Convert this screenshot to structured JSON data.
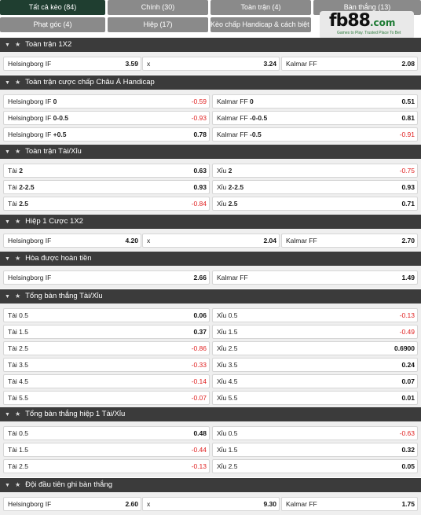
{
  "tabs": [
    {
      "label": "Tất cả kèo (84)",
      "active": true
    },
    {
      "label": "Chính (30)",
      "active": false
    },
    {
      "label": "Toàn trận (4)",
      "active": false
    },
    {
      "label": "Bàn thắng (13)",
      "active": false
    },
    {
      "label": "Phạt góc (4)",
      "active": false
    },
    {
      "label": "Hiệp (17)",
      "active": false
    },
    {
      "label": "Kèo chấp Handicap & cách biệt (3)",
      "active": false
    }
  ],
  "logo": {
    "brand": "fb88",
    "suffix": ".com",
    "tagline": "Games to Play. Trusted Place To Bet"
  },
  "sections": [
    {
      "title": "Toàn trận 1X2",
      "type": "three",
      "rows": [
        [
          {
            "label": "Helsingborg IF",
            "odds": "3.59"
          },
          {
            "label": "x",
            "odds": "3.24"
          },
          {
            "label": "Kalmar FF",
            "odds": "2.08"
          }
        ]
      ]
    },
    {
      "title": "Toàn trận cược chấp Châu Á Handicap",
      "type": "two",
      "rows": [
        [
          {
            "label": "Helsingborg IF",
            "line": "0",
            "odds": "-0.59"
          },
          {
            "label": "Kalmar FF",
            "line": "0",
            "odds": "0.51"
          }
        ],
        [
          {
            "label": "Helsingborg IF",
            "line": "0-0.5",
            "odds": "-0.93"
          },
          {
            "label": "Kalmar FF",
            "line": "-0-0.5",
            "odds": "0.81"
          }
        ],
        [
          {
            "label": "Helsingborg IF",
            "line": "+0.5",
            "odds": "0.78"
          },
          {
            "label": "Kalmar FF",
            "line": "-0.5",
            "odds": "-0.91"
          }
        ]
      ]
    },
    {
      "title": "Toàn trận Tài/Xỉu",
      "type": "two",
      "rows": [
        [
          {
            "label": "Tài",
            "line": "2",
            "odds": "0.63"
          },
          {
            "label": "Xỉu",
            "line": "2",
            "odds": "-0.75"
          }
        ],
        [
          {
            "label": "Tài",
            "line": "2-2.5",
            "odds": "0.93"
          },
          {
            "label": "Xỉu",
            "line": "2-2.5",
            "odds": "0.93"
          }
        ],
        [
          {
            "label": "Tài",
            "line": "2.5",
            "odds": "-0.84"
          },
          {
            "label": "Xỉu",
            "line": "2.5",
            "odds": "0.71"
          }
        ]
      ]
    },
    {
      "title": "Hiệp 1 Cược 1X2",
      "type": "three",
      "rows": [
        [
          {
            "label": "Helsingborg IF",
            "odds": "4.20"
          },
          {
            "label": "x",
            "odds": "2.04"
          },
          {
            "label": "Kalmar FF",
            "odds": "2.70"
          }
        ]
      ]
    },
    {
      "title": "Hòa được hoàn tiền",
      "type": "two",
      "rows": [
        [
          {
            "label": "Helsingborg IF",
            "line": "",
            "odds": "2.66"
          },
          {
            "label": "Kalmar FF",
            "line": "",
            "odds": "1.49"
          }
        ]
      ]
    },
    {
      "title": "Tổng bàn thắng Tài/Xỉu",
      "type": "two",
      "rows": [
        [
          {
            "label": "Tài 0.5",
            "line": "",
            "odds": "0.06"
          },
          {
            "label": "Xỉu 0.5",
            "line": "",
            "odds": "-0.13"
          }
        ],
        [
          {
            "label": "Tài 1.5",
            "line": "",
            "odds": "0.37"
          },
          {
            "label": "Xỉu 1.5",
            "line": "",
            "odds": "-0.49"
          }
        ],
        [
          {
            "label": "Tài 2.5",
            "line": "",
            "odds": "-0.86"
          },
          {
            "label": "Xỉu 2.5",
            "line": "",
            "odds": "0.6900"
          }
        ],
        [
          {
            "label": "Tài 3.5",
            "line": "",
            "odds": "-0.33"
          },
          {
            "label": "Xỉu 3.5",
            "line": "",
            "odds": "0.24"
          }
        ],
        [
          {
            "label": "Tài 4.5",
            "line": "",
            "odds": "-0.14"
          },
          {
            "label": "Xỉu 4.5",
            "line": "",
            "odds": "0.07"
          }
        ],
        [
          {
            "label": "Tài 5.5",
            "line": "",
            "odds": "-0.07"
          },
          {
            "label": "Xỉu 5.5",
            "line": "",
            "odds": "0.01"
          }
        ]
      ]
    },
    {
      "title": "Tổng bàn thắng hiệp 1 Tài/Xỉu",
      "type": "two",
      "rows": [
        [
          {
            "label": "Tài 0.5",
            "line": "",
            "odds": "0.48"
          },
          {
            "label": "Xỉu 0.5",
            "line": "",
            "odds": "-0.63"
          }
        ],
        [
          {
            "label": "Tài 1.5",
            "line": "",
            "odds": "-0.44"
          },
          {
            "label": "Xỉu 1.5",
            "line": "",
            "odds": "0.32"
          }
        ],
        [
          {
            "label": "Tài 2.5",
            "line": "",
            "odds": "-0.13"
          },
          {
            "label": "Xỉu 2.5",
            "line": "",
            "odds": "0.05"
          }
        ]
      ]
    },
    {
      "title": "Đội đầu tiên ghi bàn thắng",
      "type": "three",
      "rows": [
        [
          {
            "label": "Helsingborg IF",
            "odds": "2.60"
          },
          {
            "label": "x",
            "odds": "9.30"
          },
          {
            "label": "Kalmar FF",
            "odds": "1.75"
          }
        ]
      ]
    }
  ],
  "icons": {
    "collapse": "chevron-down-icon",
    "pin": "star-icon"
  }
}
